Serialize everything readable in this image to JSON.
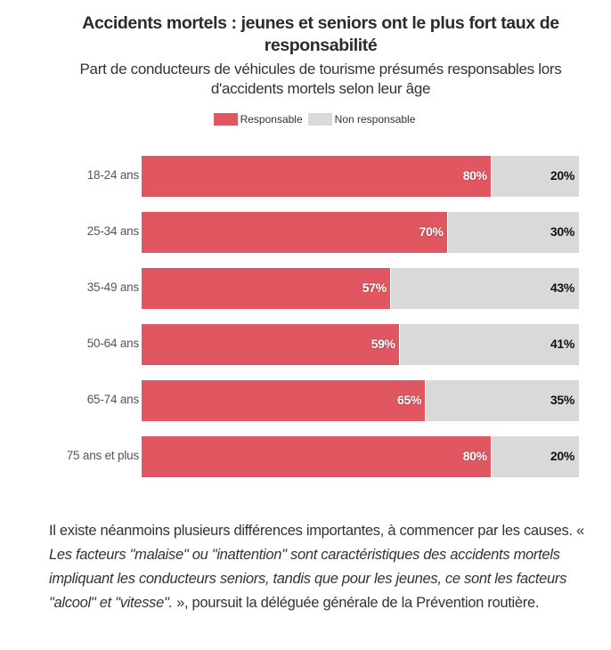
{
  "chart_data": {
    "type": "bar",
    "orientation": "horizontal",
    "stacked": true,
    "percent": true,
    "title": "Accidents mortels : jeunes et seniors ont le plus fort taux de responsabilité",
    "subtitle": "Part de conducteurs de véhicules de tourisme présumés responsables lors d'accidents mortels selon leur âge",
    "xlabel": "",
    "ylabel": "",
    "xlim": [
      0,
      100
    ],
    "grid": false,
    "legend_position": "top-center",
    "categories": [
      "18-24 ans",
      "25-34 ans",
      "35-49 ans",
      "50-64 ans",
      "65-74 ans",
      "75 ans et plus"
    ],
    "series": [
      {
        "name": "Responsable",
        "color": "#e15761",
        "values": [
          80,
          70,
          57,
          59,
          65,
          80
        ]
      },
      {
        "name": "Non responsable",
        "color": "#d9d9d9",
        "values": [
          20,
          30,
          43,
          41,
          35,
          20
        ]
      }
    ],
    "value_suffix": "%"
  },
  "article": {
    "paragraph": {
      "part1": "Il existe néanmoins plusieurs différences importantes, à commencer par les causes. « ",
      "quote": "Les facteurs \"malaise\" ou \"inattention\" sont caractéristiques des accidents mortels impliquant les conducteurs seniors, tandis que pour les jeunes, ce sont les facteurs \"alcool\" et \"vitesse\".",
      "part2": " », poursuit la déléguée générale de la Prévention routière."
    }
  }
}
